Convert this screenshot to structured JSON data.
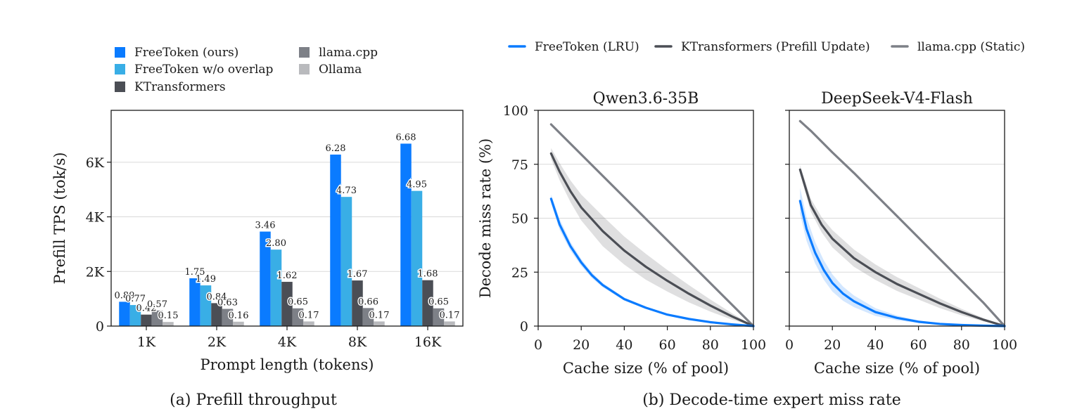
{
  "chart_data": [
    {
      "type": "bar",
      "caption": "(a) Prefill throughput",
      "xlabel": "Prompt length (tokens)",
      "ylabel": "Prefill TPS (tok/s)",
      "ylim": [
        0,
        7900
      ],
      "yticks": [
        0,
        2000,
        4000,
        6000
      ],
      "ytick_labels": [
        "0",
        "2K",
        "4K",
        "6K"
      ],
      "categories": [
        "1K",
        "2K",
        "4K",
        "8K",
        "16K"
      ],
      "grid": "horizontal",
      "legend_position": "top",
      "series": [
        {
          "name": "FreeToken (ours)",
          "color": "#0a7bff",
          "values": [
            890,
            1750,
            3460,
            6280,
            6680
          ],
          "labels": [
            "0.89",
            "1.75",
            "3.46",
            "6.28",
            "6.68"
          ]
        },
        {
          "name": "FreeToken w/o overlap",
          "color": "#39aee6",
          "values": [
            770,
            1490,
            2800,
            4730,
            4950
          ],
          "labels": [
            "0.77",
            "1.49",
            "2.80",
            "4.73",
            "4.95"
          ]
        },
        {
          "name": "KTransformers",
          "color": "#4b4e55",
          "values": [
            420,
            840,
            1620,
            1670,
            1680
          ],
          "labels": [
            "0.42",
            "0.84",
            "1.62",
            "1.67",
            "1.68"
          ]
        },
        {
          "name": "llama.cpp",
          "color": "#7d8087",
          "values": [
            570,
            630,
            650,
            660,
            650
          ],
          "labels": [
            "0.57",
            "0.63",
            "0.65",
            "0.66",
            "0.65"
          ]
        },
        {
          "name": "Ollama",
          "color": "#b9babd",
          "values": [
            150,
            160,
            170,
            170,
            170
          ],
          "labels": [
            "0.15",
            "0.16",
            "0.17",
            "0.17",
            "0.17"
          ]
        }
      ]
    },
    {
      "type": "line",
      "caption": "(b) Decode-time expert miss rate",
      "legend_position": "top",
      "legend": [
        {
          "name": "FreeToken (LRU)",
          "color": "#0a7bff"
        },
        {
          "name": "KTransformers (Prefill Update)",
          "color": "#4b4e55"
        },
        {
          "name": "llama.cpp (Static)",
          "color": "#7d8087"
        }
      ],
      "panels": [
        {
          "title": "Qwen3.6-35B",
          "xlabel": "Cache size (% of pool)",
          "ylabel": "Decode miss rate (%)",
          "xlim": [
            0,
            100
          ],
          "ylim": [
            0,
            100
          ],
          "xticks": [
            0,
            20,
            40,
            60,
            80,
            100
          ],
          "yticks": [
            0,
            25,
            50,
            75,
            100
          ],
          "grid": "horizontal",
          "series": [
            {
              "name": "FreeToken (LRU)",
              "color": "#0a7bff",
              "x": [
                6,
                10,
                15,
                20,
                25,
                30,
                40,
                50,
                60,
                70,
                80,
                90,
                100
              ],
              "y": [
                59,
                47,
                37,
                29.5,
                23.5,
                19,
                12.5,
                8.5,
                5.3,
                3.3,
                1.8,
                0.8,
                0
              ],
              "band": [
                2,
                2.5,
                2,
                1.6,
                1.3,
                1.0,
                0.7,
                0.5,
                0.3,
                0.2,
                0.1,
                0.05,
                0
              ]
            },
            {
              "name": "KTransformers (Prefill Update)",
              "color": "#4b4e55",
              "x": [
                6,
                10,
                15,
                20,
                30,
                40,
                50,
                60,
                70,
                80,
                90,
                100
              ],
              "y": [
                80,
                71.5,
                62.5,
                55,
                44,
                35,
                27.5,
                21,
                15,
                9.5,
                4.5,
                0
              ],
              "band": [
                2.5,
                4,
                5,
                6,
                7,
                6.5,
                6,
                5,
                4,
                2.8,
                1.5,
                0
              ]
            },
            {
              "name": "llama.cpp (Static)",
              "color": "#7d8087",
              "x": [
                6,
                100
              ],
              "y": [
                93.5,
                0
              ]
            }
          ]
        },
        {
          "title": "DeepSeek-V4-Flash",
          "xlabel": "Cache size (% of pool)",
          "ylabel": "",
          "xlim": [
            0,
            100
          ],
          "ylim": [
            0,
            100
          ],
          "xticks": [
            0,
            20,
            40,
            60,
            80,
            100
          ],
          "yticks": [
            0,
            25,
            50,
            75,
            100
          ],
          "grid": "horizontal",
          "series": [
            {
              "name": "FreeToken (LRU)",
              "color": "#0a7bff",
              "x": [
                5,
                8,
                12,
                16,
                20,
                25,
                30,
                40,
                50,
                60,
                70,
                80,
                90,
                100
              ],
              "y": [
                58,
                45,
                34,
                26,
                20,
                15,
                11.5,
                6.5,
                3.8,
                2,
                1,
                0.5,
                0.2,
                0
              ],
              "band": [
                6,
                5.5,
                5,
                4.5,
                4,
                3.3,
                2.7,
                1.8,
                1.1,
                0.6,
                0.3,
                0.15,
                0.05,
                0
              ]
            },
            {
              "name": "KTransformers (Prefill Update)",
              "color": "#4b4e55",
              "x": [
                5,
                10,
                15,
                20,
                30,
                40,
                50,
                60,
                70,
                80,
                90,
                100
              ],
              "y": [
                72.5,
                56,
                47,
                40.5,
                31.5,
                25,
                19.5,
                15,
                10.5,
                6.5,
                3,
                0
              ],
              "band": [
                2,
                3,
                3.5,
                4,
                4,
                3.6,
                3.2,
                2.7,
                2.2,
                1.5,
                0.8,
                0
              ]
            },
            {
              "name": "llama.cpp (Static)",
              "color": "#7d8087",
              "x": [
                5,
                10,
                20,
                30,
                40,
                50,
                60,
                70,
                80,
                90,
                100
              ],
              "y": [
                95,
                90.5,
                80.5,
                71,
                61,
                51,
                41,
                31,
                21,
                11,
                0
              ]
            }
          ]
        }
      ]
    }
  ]
}
